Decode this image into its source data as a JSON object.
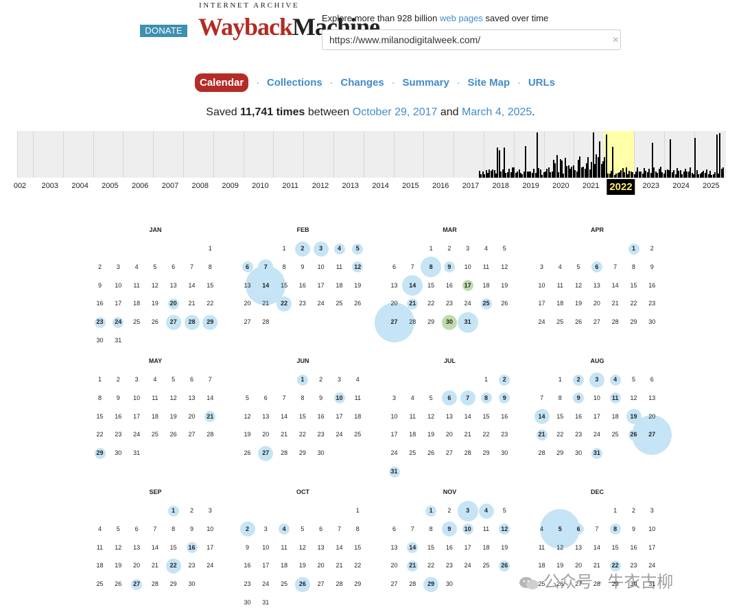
{
  "header": {
    "donate_label": "DONATE",
    "logo_top": "INTERNET ARCHIVE",
    "logo_wayback": "Wayback",
    "logo_machine": "Machine",
    "tagline_prefix": "Explore more than 928 billion ",
    "tagline_link": "web pages",
    "tagline_suffix": " saved over time",
    "url_value": "https://www.milanodigitalweek.com/",
    "clear_icon": "×"
  },
  "nav": {
    "tabs": [
      "Calendar",
      "Collections",
      "Changes",
      "Summary",
      "Site Map",
      "URLs"
    ],
    "active": "Calendar",
    "separator": "·"
  },
  "summary": {
    "prefix": "Saved ",
    "count": "11,741 times",
    "middle": " between ",
    "start": "October 29, 2017",
    "and": " and ",
    "end": "March 4, 2025",
    "suffix": "."
  },
  "sparkline": {
    "years": [
      "002",
      "2003",
      "2004",
      "2005",
      "2006",
      "2007",
      "2008",
      "2009",
      "2010",
      "2011",
      "2012",
      "2013",
      "2014",
      "2015",
      "2016",
      "2017",
      "2018",
      "2019",
      "2020",
      "2021",
      "2022",
      "2023",
      "2024",
      "2025"
    ],
    "selected_year": "2022"
  },
  "calendar": {
    "year": 2022,
    "months": [
      "JAN",
      "FEB",
      "MAR",
      "APR",
      "MAY",
      "JUN",
      "JUL",
      "AUG",
      "SEP",
      "OCT",
      "NOV",
      "DEC"
    ],
    "month_lengths": [
      31,
      28,
      31,
      30,
      31,
      30,
      31,
      31,
      30,
      31,
      30,
      31
    ],
    "first_weekday": [
      6,
      2,
      2,
      5,
      0,
      3,
      5,
      1,
      4,
      6,
      2,
      4
    ],
    "captures": {
      "JAN": {
        "20": 1,
        "23": 1,
        "24": 1,
        "27": 2,
        "28": 2,
        "29": 2
      },
      "FEB": {
        "2": 2,
        "3": 2,
        "4": 1,
        "5": 1,
        "6": 1,
        "7": 2,
        "12": 1,
        "14": 4,
        "22": 2
      },
      "MAR": {
        "8": 3,
        "9": 1,
        "14": 3,
        "17": 1,
        "21": 1,
        "25": 1,
        "27": 4,
        "30": 2,
        "31": 3
      },
      "APR": {
        "1": 1,
        "6": 1
      },
      "MAY": {
        "21": 1,
        "29": 1
      },
      "JUN": {
        "1": 1,
        "10": 1,
        "27": 2
      },
      "JUL": {
        "2": 1,
        "6": 2,
        "7": 2,
        "8": 1,
        "9": 1,
        "31": 1
      },
      "AUG": {
        "2": 1,
        "3": 2,
        "4": 1,
        "9": 1,
        "11": 1,
        "14": 2,
        "19": 2,
        "21": 1,
        "26": 1,
        "27": 4,
        "31": 1
      },
      "SEP": {
        "1": 1,
        "16": 1,
        "22": 2,
        "27": 1
      },
      "OCT": {
        "2": 2,
        "4": 1,
        "26": 2
      },
      "NOV": {
        "1": 1,
        "3": 3,
        "4": 2,
        "9": 2,
        "10": 1,
        "12": 1,
        "14": 1,
        "21": 1,
        "26": 1,
        "29": 2
      },
      "DEC": {
        "5": 5,
        "6": 1,
        "8": 1,
        "22": 1
      }
    },
    "green_days": {
      "MAR": [
        "17",
        "30"
      ]
    }
  },
  "watermark": {
    "text": "公众号 · 牛衣古柳"
  },
  "colors": {
    "accent": "#428bca",
    "active_tab": "#b52b27",
    "capture_bubble": "#c5e4f5",
    "selected_year_bg": "#ffffa8"
  }
}
